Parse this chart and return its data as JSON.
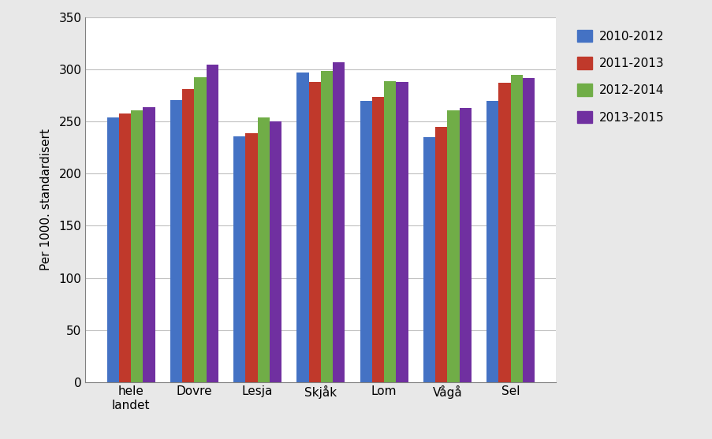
{
  "categories": [
    "hele\nlandet",
    "Dovre",
    "Lesja",
    "Skjåk",
    "Lom",
    "Vågå",
    "Sel"
  ],
  "series": {
    "2010-2012": [
      254,
      271,
      236,
      297,
      270,
      235,
      270
    ],
    "2011-2013": [
      258,
      281,
      239,
      288,
      274,
      245,
      287
    ],
    "2012-2014": [
      261,
      293,
      254,
      299,
      289,
      261,
      295
    ],
    "2013-2015": [
      264,
      305,
      250,
      307,
      288,
      263,
      292
    ]
  },
  "series_order": [
    "2010-2012",
    "2011-2013",
    "2012-2014",
    "2013-2015"
  ],
  "colors": {
    "2010-2012": "#4472C4",
    "2011-2013": "#C0392B",
    "2012-2014": "#70AD47",
    "2013-2015": "#7030A0"
  },
  "ylabel": "Per 1000. standardisert",
  "ylim": [
    0,
    350
  ],
  "yticks": [
    0,
    50,
    100,
    150,
    200,
    250,
    300,
    350
  ],
  "fig_bg": "#E8E8E8",
  "plot_bg": "#FFFFFF",
  "bar_width": 0.19,
  "title": "",
  "legend_fontsize": 11,
  "axis_fontsize": 11,
  "grid_color": "#C0C0C0",
  "spine_color": "#808080"
}
